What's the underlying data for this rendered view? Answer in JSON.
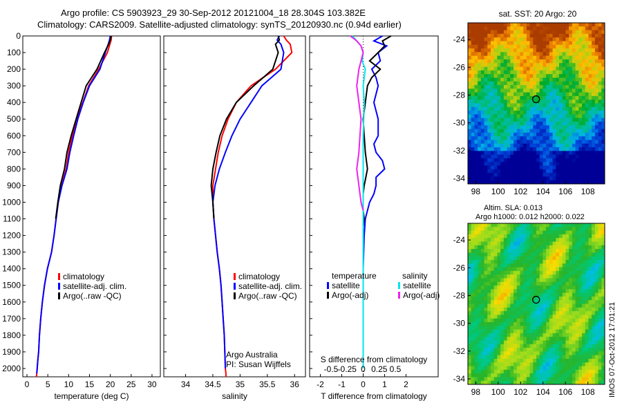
{
  "header": {
    "line1": "Argo profile: CS 5903923_29 30-Sep-2012 20121004_18 28.304S 103.382E",
    "line2": "Climatology: CARS2009. Satellite-adjusted climatology: synTS_20120930.nc (0.94d earlier)"
  },
  "side": {
    "stamp": "IMOS 07-Oct-2012 17:01:21",
    "altim1": "Altim. SLA: 0.013",
    "altim2": "Argo h1000: 0.012 h2000: 0.022"
  },
  "colors": {
    "climatology": "#ff0000",
    "satellite": "#0000ff",
    "argo": "#000000",
    "sat_salinity": "#00e5ee",
    "argo_salinity": "#ee22ee"
  },
  "chart_data": [
    {
      "type": "line",
      "xlabel": "temperature (deg C)",
      "ylim": [
        2050,
        0
      ],
      "xlim": [
        -1,
        32
      ],
      "yticks": [
        0,
        100,
        200,
        300,
        400,
        500,
        600,
        700,
        800,
        900,
        1000,
        1100,
        1200,
        1300,
        1400,
        1500,
        1600,
        1700,
        1800,
        1900,
        2000
      ],
      "xticks": [
        0,
        5,
        10,
        15,
        20,
        25,
        30
      ],
      "legend": [
        "climatology",
        "satellite-adj. clim.",
        "Argo(..raw -QC)"
      ],
      "series": [
        {
          "name": "climatology",
          "color": "#ff0000",
          "x": [
            20.3,
            20.2,
            19.9,
            19.3,
            17.2,
            14.8,
            13.4,
            12.0,
            10.9,
            10.0,
            9.4,
            8.3,
            7.5,
            7.0,
            6.5,
            5.9,
            4.9,
            4.2,
            3.7,
            3.3,
            3.0,
            2.8,
            2.6,
            2.45,
            2.35,
            2.3,
            2.25
          ],
          "y": [
            0,
            25,
            50,
            100,
            200,
            300,
            400,
            500,
            600,
            700,
            800,
            900,
            1000,
            1100,
            1200,
            1300,
            1400,
            1500,
            1600,
            1700,
            1800,
            1900,
            1950,
            2000,
            2030,
            2040,
            2050
          ]
        },
        {
          "name": "satellite-adj. clim.",
          "color": "#0000ff",
          "x": [
            20.0,
            19.8,
            19.5,
            18.8,
            17.5,
            15.0,
            13.5,
            12.2,
            11.2,
            10.3,
            9.6,
            8.4,
            7.5,
            7.0,
            6.5,
            5.9,
            4.9,
            4.2,
            3.7,
            3.3,
            3.0,
            2.8,
            2.6,
            2.45,
            2.35
          ],
          "y": [
            0,
            25,
            50,
            100,
            200,
            300,
            400,
            500,
            600,
            700,
            800,
            900,
            1000,
            1100,
            1200,
            1300,
            1400,
            1500,
            1600,
            1700,
            1800,
            1900,
            1950,
            2000,
            2030
          ]
        },
        {
          "name": "Argo(..raw -QC)",
          "color": "#000000",
          "x": [
            20.2,
            20.0,
            19.6,
            18.6,
            16.8,
            14.2,
            13.0,
            11.8,
            10.6,
            9.6,
            9.0,
            8.0,
            7.4,
            6.9
          ],
          "y": [
            0,
            25,
            50,
            100,
            200,
            300,
            400,
            500,
            600,
            700,
            800,
            900,
            1000,
            1100
          ]
        }
      ]
    },
    {
      "type": "line",
      "xlabel": "salinity",
      "ylim": [
        2050,
        0
      ],
      "xlim": [
        33.6,
        36.2
      ],
      "xticks": [
        34,
        34.5,
        35,
        35.5,
        36
      ],
      "legend": [
        "climatology",
        "satellite-adj. clim.",
        "Argo(..raw -QC)"
      ],
      "annotation": [
        "Argo Australia",
        "PI: Susan Wijffels"
      ],
      "series": [
        {
          "name": "climatology",
          "color": "#ff0000",
          "x": [
            35.8,
            35.85,
            35.92,
            35.95,
            35.65,
            35.2,
            34.93,
            34.78,
            34.67,
            34.6,
            34.55,
            34.5,
            34.5,
            34.52,
            34.55,
            34.58,
            34.62,
            34.65,
            34.67,
            34.69,
            34.71,
            34.72,
            34.73,
            34.74,
            34.74
          ],
          "y": [
            0,
            25,
            50,
            100,
            200,
            300,
            400,
            500,
            600,
            700,
            800,
            900,
            1000,
            1100,
            1200,
            1300,
            1400,
            1500,
            1600,
            1700,
            1800,
            1900,
            2000,
            2030,
            2050
          ]
        },
        {
          "name": "satellite-adj. clim.",
          "color": "#0000ff",
          "x": [
            35.72,
            35.68,
            35.75,
            35.8,
            35.75,
            35.4,
            35.2,
            35.0,
            34.85,
            34.73,
            34.62,
            34.54,
            34.5,
            34.52,
            34.55,
            34.58,
            34.62,
            34.65,
            34.67,
            34.69,
            34.71,
            34.72,
            34.73
          ],
          "y": [
            0,
            25,
            50,
            100,
            200,
            300,
            400,
            500,
            600,
            700,
            800,
            900,
            1000,
            1100,
            1200,
            1300,
            1400,
            1500,
            1600,
            1700,
            1800,
            1900,
            2000
          ]
        },
        {
          "name": "Argo(..raw -QC)",
          "color": "#000000",
          "x": [
            35.7,
            35.72,
            35.65,
            35.7,
            35.6,
            35.25,
            34.93,
            34.75,
            34.63,
            34.56,
            34.5,
            34.47,
            34.5,
            34.52
          ],
          "y": [
            0,
            25,
            50,
            100,
            200,
            300,
            400,
            500,
            600,
            700,
            800,
            900,
            1000,
            1100
          ]
        }
      ]
    },
    {
      "type": "line",
      "xlabel": "T difference from climatology",
      "xlabel_top": "S difference from climatology",
      "xticks": [
        -2,
        -1,
        0,
        1,
        2
      ],
      "xticks_top": [
        "-0.5",
        "-0.25",
        "0",
        "0.25",
        "0.5"
      ],
      "xlim": [
        -2.5,
        3.5
      ],
      "ylim": [
        2050,
        0
      ],
      "legend_temperature": {
        "title": "temperature",
        "items": [
          "satellite",
          "Argo(-adj)"
        ]
      },
      "legend_salinity": {
        "title": "salinity",
        "items": [
          "satellite",
          "Argo(-adj)"
        ]
      },
      "series": [
        {
          "name": "satellite",
          "color": "#0000ff",
          "x": [
            0.9,
            0.5,
            1.1,
            0.7,
            0.8,
            0.4,
            0.6,
            0.7,
            0.5,
            0.7,
            0.7,
            0.5,
            0.6,
            0.9,
            1.0,
            0.6,
            0.6,
            0.5,
            0.3,
            0.2,
            0.1,
            0.05,
            0.0,
            0.0,
            0.0
          ],
          "y": [
            0,
            30,
            60,
            100,
            150,
            200,
            250,
            300,
            400,
            500,
            600,
            650,
            700,
            750,
            800,
            850,
            900,
            950,
            1000,
            1050,
            1100,
            1200,
            1400,
            1600,
            2000
          ]
        },
        {
          "name": "Argo(-adj)",
          "color": "#000000",
          "x": [
            1.3,
            0.9,
            1.0,
            0.7,
            0.3,
            0.8,
            0.4,
            0.2,
            0.1,
            0.0,
            0.05,
            0.1,
            0.2,
            0.05,
            0.0,
            0.0,
            0.0,
            0.05,
            0.0
          ],
          "y": [
            0,
            30,
            60,
            100,
            150,
            200,
            250,
            300,
            400,
            500,
            600,
            700,
            800,
            900,
            950,
            1000,
            1050,
            1100,
            1150
          ]
        },
        {
          "name": "satellite",
          "color": "#00e5ee",
          "x": [
            -0.5,
            -0.3,
            -0.1,
            0.0,
            -0.05,
            0.1,
            0.0,
            0.05,
            0.0,
            0.0,
            0.0,
            0.0,
            0.0,
            0.0,
            0.0,
            0.0
          ],
          "y": [
            0,
            30,
            60,
            100,
            150,
            200,
            300,
            400,
            600,
            800,
            1000,
            1200,
            1400,
            1600,
            1800,
            2000
          ]
        },
        {
          "name": "Argo(-adj)",
          "color": "#ee22ee",
          "x": [
            -0.6,
            -0.3,
            -0.1,
            0.0,
            -0.1,
            -0.2,
            -0.3,
            -0.2,
            -0.1,
            -0.2,
            -0.3,
            -0.2,
            -0.1,
            0.0
          ],
          "y": [
            0,
            30,
            60,
            100,
            150,
            200,
            300,
            400,
            500,
            700,
            800,
            900,
            1000,
            1050
          ]
        }
      ]
    },
    {
      "type": "heatmap",
      "title": "sat. SST: 20 Argo: 20",
      "xticks": [
        98,
        100,
        102,
        104,
        106,
        108
      ],
      "yticks": [
        -24,
        -26,
        -28,
        -30,
        -32,
        -34
      ],
      "marker": {
        "lon": 103.382,
        "lat": -28.304
      }
    },
    {
      "type": "heatmap",
      "xticks": [
        98,
        100,
        102,
        104,
        106,
        108
      ],
      "yticks": [
        -24,
        -26,
        -28,
        -30,
        -32,
        -34
      ],
      "marker": {
        "lon": 103.382,
        "lat": -28.304
      }
    }
  ]
}
